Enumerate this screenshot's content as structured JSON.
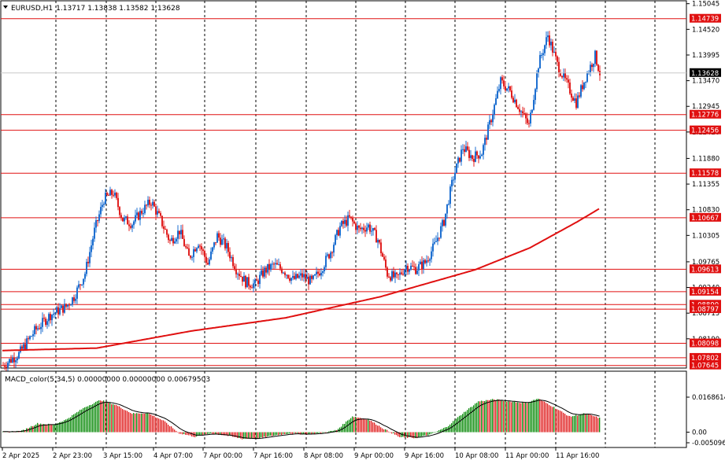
{
  "header": {
    "symbol": "EURUSD,H1",
    "ohlc": "1.13717 1.13838 1.13582 1.13628"
  },
  "price_axis": {
    "ticks": [
      "1.15045",
      "1.14520",
      "1.13995",
      "1.13470",
      "1.12945",
      "1.12420",
      "1.11880",
      "1.11355",
      "1.10830",
      "1.10305",
      "1.09765",
      "1.09240",
      "1.08715",
      "1.08190"
    ],
    "levels": [
      {
        "label": "1.14739",
        "value": 1.14739
      },
      {
        "label": "1.12776",
        "value": 1.12776
      },
      {
        "label": "1.12456",
        "value": 1.12456
      },
      {
        "label": "1.11578",
        "value": 1.11578
      },
      {
        "label": "1.10667",
        "value": 1.10667
      },
      {
        "label": "1.09613",
        "value": 1.09613
      },
      {
        "label": "1.09154",
        "value": 1.09154
      },
      {
        "label": "1.08890",
        "value": 1.0889
      },
      {
        "label": "1.08797",
        "value": 1.08797
      },
      {
        "label": "1.08098",
        "value": 1.08098
      },
      {
        "label": "1.07802",
        "value": 1.07802
      },
      {
        "label": "1.07645",
        "value": 1.07645
      }
    ],
    "current_price": "1.13628",
    "current_value": 1.13628
  },
  "macd": {
    "title": "MACD_color(5,34,5) 0.00000000 0.00000000 0.00679503",
    "ticks": [
      "0.0168614",
      "0.00",
      "-0.005096"
    ]
  },
  "time_axis": {
    "labels": [
      "2 Apr 2025",
      "2 Apr 23:00",
      "3 Apr 15:00",
      "4 Apr 07:00",
      "7 Apr 00:00",
      "7 Apr 16:00",
      "8 Apr 08:00",
      "9 Apr 00:00",
      "9 Apr 16:00",
      "10 Apr 08:00",
      "11 Apr 00:00",
      "11 Apr 16:00"
    ]
  },
  "colors": {
    "bull": "#1e6fd0",
    "bear": "#e02020",
    "level": "#e01010",
    "ma": "#e01010",
    "macd_up": "#0a8a0a",
    "macd_down": "#e02020",
    "signal": "#000000"
  },
  "chart_data": {
    "type": "candlestick",
    "timeframe": "H1",
    "price_range": [
      1.0764,
      1.1504
    ],
    "trend_path": [
      [
        0,
        1.0765
      ],
      [
        10,
        1.0788
      ],
      [
        20,
        1.0835
      ],
      [
        30,
        1.0868
      ],
      [
        40,
        1.0885
      ],
      [
        45,
        1.0905
      ],
      [
        52,
        1.0953
      ],
      [
        58,
        1.104
      ],
      [
        64,
        1.1105
      ],
      [
        70,
        1.1118
      ],
      [
        76,
        1.1063
      ],
      [
        82,
        1.1055
      ],
      [
        88,
        1.108
      ],
      [
        94,
        1.11
      ],
      [
        100,
        1.1062
      ],
      [
        106,
        1.1018
      ],
      [
        112,
        1.104
      ],
      [
        118,
        1.0985
      ],
      [
        124,
        1.1018
      ],
      [
        130,
        1.0972
      ],
      [
        136,
        1.103
      ],
      [
        142,
        1.1006
      ],
      [
        148,
        1.0962
      ],
      [
        154,
        1.0935
      ],
      [
        160,
        1.093
      ],
      [
        166,
        1.0958
      ],
      [
        172,
        1.097
      ],
      [
        178,
        1.096
      ],
      [
        184,
        1.094
      ],
      [
        190,
        1.0948
      ],
      [
        196,
        1.0935
      ],
      [
        202,
        1.0962
      ],
      [
        208,
        1.0998
      ],
      [
        214,
        1.1048
      ],
      [
        220,
        1.1065
      ],
      [
        226,
        1.1042
      ],
      [
        232,
        1.105
      ],
      [
        238,
        1.1022
      ],
      [
        244,
        1.0952
      ],
      [
        250,
        1.0942
      ],
      [
        256,
        1.0968
      ],
      [
        262,
        1.0962
      ],
      [
        268,
        1.0975
      ],
      [
        274,
        1.101
      ],
      [
        280,
        1.106
      ],
      [
        286,
        1.115
      ],
      [
        292,
        1.121
      ],
      [
        298,
        1.119
      ],
      [
        304,
        1.12
      ],
      [
        310,
        1.127
      ],
      [
        316,
        1.1345
      ],
      [
        322,
        1.1325
      ],
      [
        328,
        1.129
      ],
      [
        334,
        1.1255
      ],
      [
        340,
        1.138
      ],
      [
        346,
        1.144
      ],
      [
        352,
        1.138
      ],
      [
        358,
        1.134
      ],
      [
        364,
        1.1302
      ],
      [
        370,
        1.1355
      ],
      [
        376,
        1.1398
      ],
      [
        379,
        1.1363
      ]
    ],
    "moving_average": [
      [
        0,
        1.0795
      ],
      [
        60,
        1.08
      ],
      [
        120,
        1.0835
      ],
      [
        180,
        1.0862
      ],
      [
        240,
        1.0905
      ],
      [
        300,
        1.096
      ],
      [
        335,
        1.1005
      ],
      [
        365,
        1.1058
      ],
      [
        379,
        1.1085
      ]
    ],
    "macd_range": [
      -0.005096,
      0.0168614
    ],
    "macd_path": [
      [
        0,
        0.0
      ],
      [
        12,
        0.0006
      ],
      [
        22,
        0.0042
      ],
      [
        32,
        0.0036
      ],
      [
        40,
        0.006
      ],
      [
        52,
        0.012
      ],
      [
        62,
        0.0155
      ],
      [
        72,
        0.013
      ],
      [
        82,
        0.009
      ],
      [
        92,
        0.0092
      ],
      [
        102,
        0.0055
      ],
      [
        112,
        -0.0005
      ],
      [
        122,
        -0.0022
      ],
      [
        132,
        -0.0005
      ],
      [
        142,
        -0.0016
      ],
      [
        152,
        -0.0032
      ],
      [
        162,
        -0.003
      ],
      [
        172,
        -0.0016
      ],
      [
        182,
        -0.0005
      ],
      [
        192,
        -0.001
      ],
      [
        202,
        -0.0005
      ],
      [
        212,
        0.001
      ],
      [
        222,
        0.0076
      ],
      [
        232,
        0.0062
      ],
      [
        242,
        0.0016
      ],
      [
        252,
        -0.0024
      ],
      [
        262,
        -0.0028
      ],
      [
        272,
        -0.001
      ],
      [
        282,
        0.0026
      ],
      [
        292,
        0.009
      ],
      [
        302,
        0.0148
      ],
      [
        312,
        0.0158
      ],
      [
        322,
        0.0148
      ],
      [
        332,
        0.014
      ],
      [
        340,
        0.0162
      ],
      [
        350,
        0.012
      ],
      [
        360,
        0.0075
      ],
      [
        370,
        0.009
      ],
      [
        379,
        0.0068
      ]
    ],
    "title": "EURUSD,H1"
  }
}
